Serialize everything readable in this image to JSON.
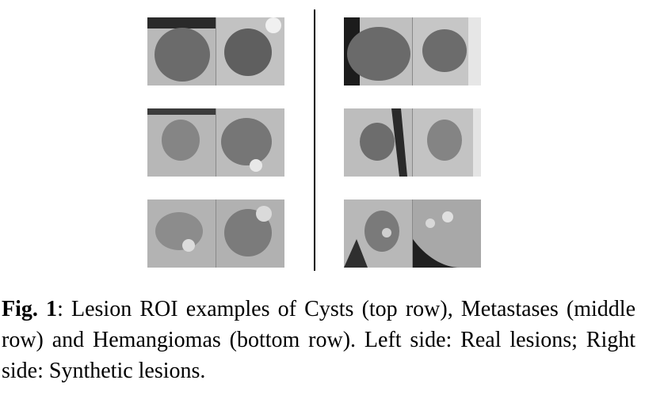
{
  "figure": {
    "label": "Fig. 1",
    "caption_text": ": Lesion ROI examples of Cysts (top row), Metastases (middle row) and Hemangiomas (bottom row).  Left side: Real lesions; Right side: Synthetic lesions."
  },
  "panels": [
    {
      "name": "cyst-real",
      "bg": "#b9b9b9",
      "lesion": "#6c6c6c"
    },
    {
      "name": "cyst-synthetic",
      "bg": "#c4c4c4",
      "lesion": "#6e6e6e"
    },
    {
      "name": "metastasis-real",
      "bg": "#b6b6b6",
      "lesion": "#838383"
    },
    {
      "name": "metastasis-synthetic",
      "bg": "#bdbdbd",
      "lesion": "#7f7f7f"
    },
    {
      "name": "hemangioma-real",
      "bg": "#b3b3b3",
      "lesion": "#838383"
    },
    {
      "name": "hemangioma-synthetic",
      "bg": "#b7b7b7",
      "lesion": "#7a7a7a"
    }
  ]
}
